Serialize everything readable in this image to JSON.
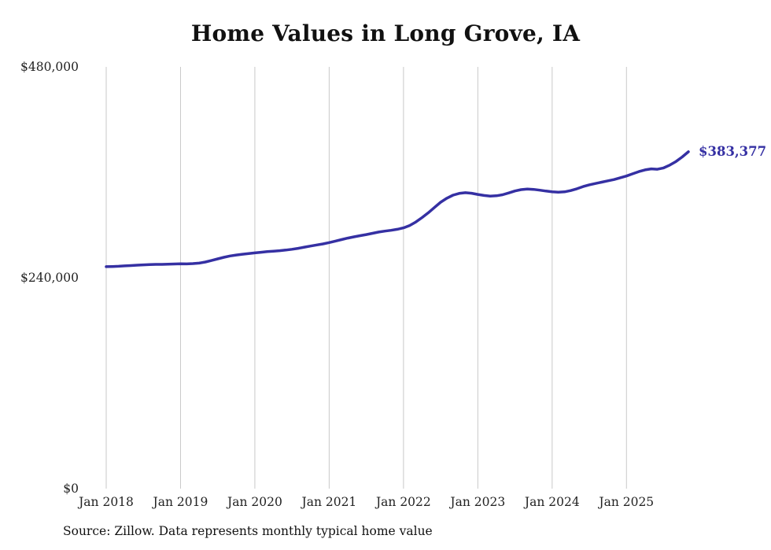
{
  "title": "Home Values in Long Grove, IA",
  "source_note": "Source: Zillow. Data represents monthly typical home value",
  "colors": {
    "line": "#3530a3",
    "end_label": "#3530a3",
    "gridline": "#c9c9c9",
    "tick_text": "#222222",
    "background": "#ffffff"
  },
  "chart_data": {
    "type": "line",
    "title": "Home Values in Long Grove, IA",
    "x_unit": "month",
    "x_start": "2018-01",
    "x_end": "2025-11",
    "ylim": [
      0,
      480000
    ],
    "grid": "vertical-only",
    "legend": "none",
    "y_ticks": [
      {
        "value": 0,
        "label": "$0"
      },
      {
        "value": 240000,
        "label": "$240,000"
      },
      {
        "value": 480000,
        "label": "$480,000"
      }
    ],
    "x_ticks": [
      {
        "month_index": 0,
        "label": "Jan 2018"
      },
      {
        "month_index": 12,
        "label": "Jan 2019"
      },
      {
        "month_index": 24,
        "label": "Jan 2020"
      },
      {
        "month_index": 36,
        "label": "Jan 2021"
      },
      {
        "month_index": 48,
        "label": "Jan 2022"
      },
      {
        "month_index": 60,
        "label": "Jan 2023"
      },
      {
        "month_index": 72,
        "label": "Jan 2024"
      },
      {
        "month_index": 84,
        "label": "Jan 2025"
      }
    ],
    "final_value": 383377,
    "final_value_label": "$383,377",
    "series": [
      {
        "name": "Typical home value",
        "values": [
          252600,
          252800,
          253100,
          253500,
          253900,
          254300,
          254700,
          255000,
          255200,
          255200,
          255400,
          255700,
          255900,
          255800,
          256100,
          256700,
          257900,
          259600,
          261500,
          263300,
          264800,
          265900,
          266800,
          267600,
          268300,
          269000,
          269700,
          270300,
          270800,
          271500,
          272400,
          273500,
          274800,
          276100,
          277300,
          278500,
          280000,
          281700,
          283400,
          285100,
          286600,
          287900,
          289200,
          290600,
          292000,
          293100,
          294000,
          295200,
          296800,
          299500,
          303500,
          308500,
          314000,
          320000,
          326000,
          330500,
          334000,
          336000,
          336800,
          336200,
          334800,
          333700,
          333000,
          333300,
          334500,
          336500,
          338800,
          340300,
          340900,
          340600,
          339700,
          338700,
          337900,
          337400,
          337800,
          339200,
          341300,
          343800,
          345800,
          347300,
          348800,
          350300,
          351800,
          353800,
          355800,
          358300,
          360800,
          362800,
          363900,
          363500,
          365000,
          368200,
          372400,
          377500,
          383377
        ]
      }
    ]
  }
}
